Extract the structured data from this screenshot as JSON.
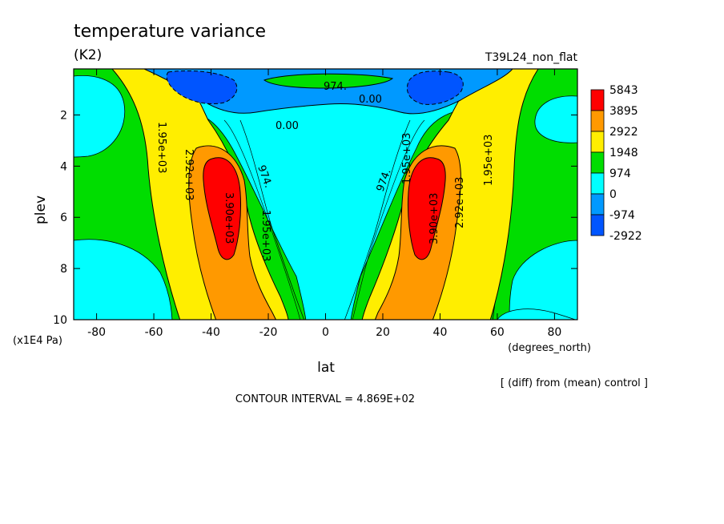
{
  "chart_data": {
    "type": "contour",
    "title": "temperature variance",
    "units": "(K2)",
    "run_label": "T39L24_non_flat",
    "xlabel": "lat",
    "x_units": "(degrees_north)",
    "ylabel": "plev",
    "y_units": "(x1E4 Pa)",
    "xlim": [
      -88,
      88
    ],
    "ylim": [
      10,
      0.2
    ],
    "x_ticks": [
      "-80",
      "-60",
      "-40",
      "-20",
      "0",
      "20",
      "40",
      "60",
      "80"
    ],
    "y_ticks": [
      "2",
      "4",
      "6",
      "8",
      "10"
    ],
    "x_tick_values": [
      -80,
      -60,
      -40,
      -20,
      0,
      20,
      40,
      60,
      80
    ],
    "y_tick_values": [
      2,
      4,
      6,
      8,
      10
    ],
    "legend": {
      "placement": "right",
      "levels": [
        "5843",
        "3895",
        "2922",
        "1948",
        "974",
        "0",
        "-974",
        "-2922"
      ],
      "colors": [
        "#ff0000",
        "#ff9900",
        "#ffee00",
        "#00dd00",
        "#00ffff",
        "#0099ff",
        "#0055ff"
      ]
    },
    "contour_labels": [
      "974.",
      "0.00",
      "0.00",
      "1.95e+03",
      "2.92e+03",
      "974.",
      "1.95e+03",
      "3.90e+03",
      "974.",
      "1.95e+03",
      "3.90e+03",
      "2.92e+03",
      "1.95e+03"
    ],
    "contour_interval_text": "CONTOUR INTERVAL = 4.869E+02",
    "comparison_text": "[ (diff) from (mean) control ]"
  }
}
